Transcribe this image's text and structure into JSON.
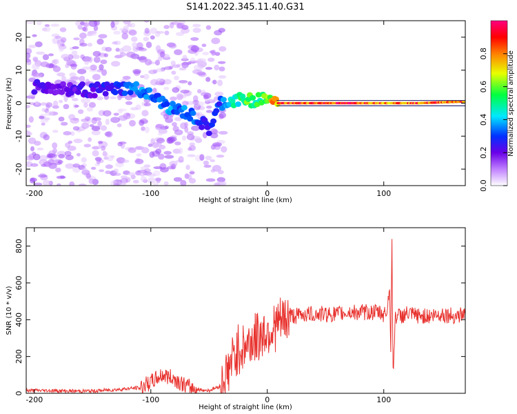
{
  "chart_data": [
    {
      "type": "heatmap",
      "title": "S141.2022.345.11.40.G31",
      "xlabel": "Height of straight line (km)",
      "ylabel": "Frequency (Hz)",
      "colorbar_label": "Normalized spectral amplitude",
      "xlim": [
        -207,
        170
      ],
      "ylim": [
        -25,
        25
      ],
      "x_ticks": [
        -200,
        -100,
        0,
        100
      ],
      "y_ticks": [
        -20,
        -10,
        0,
        10,
        20
      ],
      "colorbar_ticks": [
        0.0,
        0.2,
        0.4,
        0.6,
        0.8
      ],
      "colorbar_range": [
        0,
        1
      ],
      "colormap": "rainbow (white-violet-blue-cyan-green-yellow-red-magenta)",
      "ridge": [
        {
          "x": -200,
          "f": 5.0,
          "amp": 0.22
        },
        {
          "x": -180,
          "f": 4.5,
          "amp": 0.2
        },
        {
          "x": -160,
          "f": 4.0,
          "amp": 0.22
        },
        {
          "x": -140,
          "f": 4.0,
          "amp": 0.25
        },
        {
          "x": -120,
          "f": 4.5,
          "amp": 0.3
        },
        {
          "x": -110,
          "f": 4.0,
          "amp": 0.4
        },
        {
          "x": -100,
          "f": 2.0,
          "amp": 0.35
        },
        {
          "x": -90,
          "f": 0.0,
          "amp": 0.35
        },
        {
          "x": -80,
          "f": -2.0,
          "amp": 0.35
        },
        {
          "x": -70,
          "f": -3.0,
          "amp": 0.35
        },
        {
          "x": -60,
          "f": -5.0,
          "amp": 0.3
        },
        {
          "x": -50,
          "f": -8.0,
          "amp": 0.25
        },
        {
          "x": -40,
          "f": 0.0,
          "amp": 0.3
        },
        {
          "x": -30,
          "f": 0.5,
          "amp": 0.45
        },
        {
          "x": -20,
          "f": 1.0,
          "amp": 0.55
        },
        {
          "x": -10,
          "f": 1.0,
          "amp": 0.55
        },
        {
          "x": 0,
          "f": 1.5,
          "amp": 0.6
        },
        {
          "x": 10,
          "f": 0.0,
          "amp": 0.85
        },
        {
          "x": 40,
          "f": 0.0,
          "amp": 0.9
        },
        {
          "x": 80,
          "f": 0.0,
          "amp": 0.9
        },
        {
          "x": 100,
          "f": 0.0,
          "amp": 0.85
        },
        {
          "x": 130,
          "f": 0.0,
          "amp": 0.85
        },
        {
          "x": 170,
          "f": 0.5,
          "amp": 0.85
        }
      ]
    },
    {
      "type": "line",
      "xlabel": "Height of straight line (km)",
      "ylabel": "SNR (10 * v/v)",
      "xlim": [
        -207,
        170
      ],
      "ylim": [
        0,
        900
      ],
      "x_ticks": [
        -200,
        -100,
        0,
        100
      ],
      "y_ticks": [
        0,
        200,
        400,
        600,
        800
      ],
      "color": "#e8322e",
      "series": [
        {
          "x": [
            -207,
            -190,
            -170,
            -150,
            -130,
            -110,
            -100,
            -90,
            -80,
            -75,
            -70,
            -60,
            -50,
            -40,
            -35,
            -30,
            -25,
            -20,
            -15,
            -10,
            -5,
            0,
            5,
            10,
            15,
            20,
            25,
            30,
            40,
            50,
            60,
            70,
            80,
            90,
            95,
            100,
            103,
            105,
            106,
            107,
            108,
            110,
            115,
            120,
            130,
            140,
            150,
            160,
            170
          ],
          "y": [
            15,
            15,
            12,
            12,
            20,
            30,
            60,
            100,
            80,
            60,
            40,
            20,
            15,
            40,
            100,
            180,
            240,
            250,
            280,
            300,
            320,
            340,
            350,
            380,
            400,
            420,
            420,
            430,
            430,
            430,
            430,
            440,
            440,
            440,
            440,
            430,
            450,
            600,
            200,
            860,
            100,
            420,
            420,
            430,
            420,
            420,
            430,
            420,
            430
          ]
        }
      ]
    }
  ]
}
